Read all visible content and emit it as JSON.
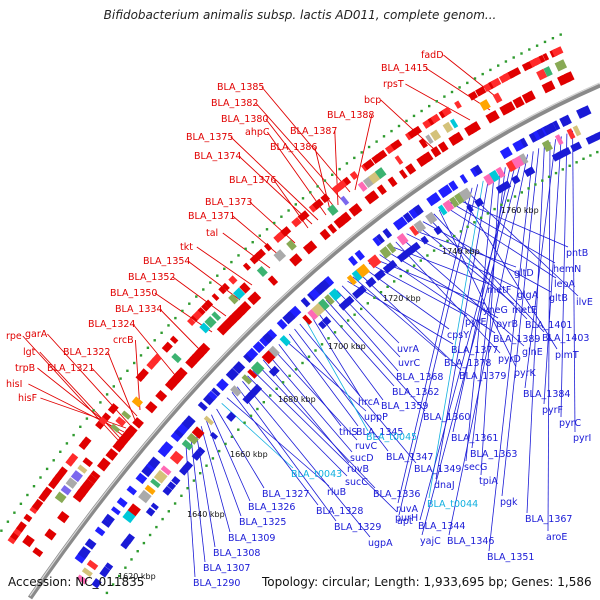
{
  "title": "Bifidobacterium animalis subsp. lactis AD011, complete genom...",
  "footer": {
    "accession": "Accession: NC_011835",
    "summary": "Topology: circular; Length: 1,933,695 bp; Genes: 1,586"
  },
  "colors": {
    "red": "#e00000",
    "blue": "#1a1ad6",
    "cyan": "#11b0e0",
    "backbone": "#8a8a8a"
  },
  "kbp_labels": [
    "1620 kbp",
    "1640 kbp",
    "1660 kbp",
    "1680 kbp",
    "1700 kbp",
    "1720 kbp",
    "1740 kbp",
    "1760 kbp"
  ],
  "outer_labels": [
    "rpe",
    "lgt",
    "trpB",
    "hisI",
    "hisF",
    "garA",
    "BLA_1322",
    "BLA_1321",
    "crcB",
    "BLA_1324",
    "BLA_1334",
    "BLA_1350",
    "BLA_1352",
    "BLA_1354",
    "tkt",
    "tal",
    "BLA_1371",
    "BLA_1373",
    "BLA_1376",
    "BLA_1374",
    "BLA_1375",
    "ahpC",
    "BLA_1380",
    "BLA_1382",
    "BLA_1385",
    "BLA_1386",
    "BLA_1387",
    "BLA_1388",
    "bcp",
    "rpsT",
    "BLA_1415",
    "fadD"
  ],
  "inner_labels": [
    "BLA_1290",
    "BLA_1307",
    "BLA_1308",
    "BLA_1309",
    "BLA_1325",
    "BLA_1326",
    "BLA_1327",
    "BLA_t0043",
    "rluB",
    "BLA_1328",
    "BLA_1329",
    "ugpA",
    "sucC",
    "purH",
    "BLA_1336",
    "ruvB",
    "sucD",
    "ruvC",
    "thiS",
    "uppP",
    "BLA_1345",
    "BLA_1347",
    "BLA_1349",
    "BLA_t0045",
    "hrcA",
    "BLA_1359",
    "BLA_1362",
    "BLA_1360",
    "BLA_1368",
    "uvrC",
    "uvrA",
    "BLA_1377",
    "BLA_1378",
    "BLA_1379",
    "cpsY",
    "pyrE",
    "yneG",
    "BLA_1389",
    "pyrB",
    "metF",
    "pyrD",
    "glnE",
    "glgA",
    "gltD",
    "metE",
    "gltB",
    "BLA_1401",
    "BLA_1403",
    "pyrK",
    "lepA",
    "hemN",
    "pntB",
    "pimT",
    "ilvE",
    "ruvA",
    "apt",
    "BLA_t0044",
    "dnaJ",
    "secG",
    "tpiA",
    "BLA_1363",
    "BLA_1361",
    "BLA_1344",
    "yajC",
    "BLA_1346",
    "BLA_1351",
    "pgk",
    "BLA_1367",
    "aroE",
    "BLA_1384",
    "pyrF",
    "pyrC",
    "pyrI"
  ]
}
